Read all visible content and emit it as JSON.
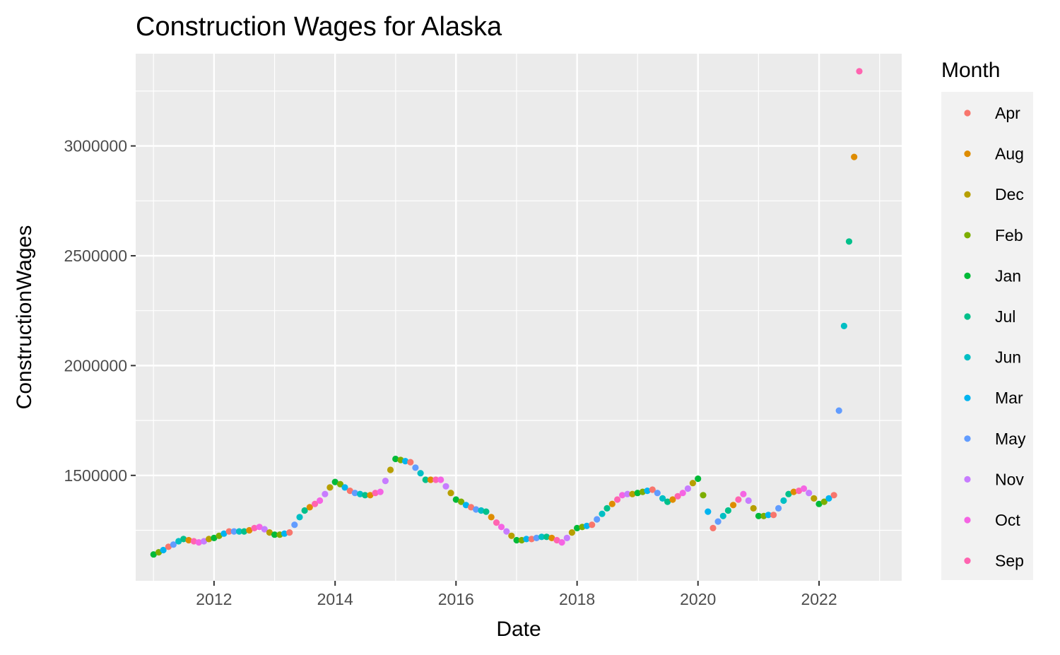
{
  "chart_data": {
    "type": "scatter",
    "title": "Construction Wages for Alaska",
    "xlabel": "Date",
    "ylabel": "ConstructionWages",
    "xlim": [
      "2010-09-15",
      "2023-05-15"
    ],
    "ylim": [
      1020000,
      3420000
    ],
    "x_ticks": [
      {
        "date": "2012-01-01",
        "label": "2012"
      },
      {
        "date": "2014-01-01",
        "label": "2014"
      },
      {
        "date": "2016-01-01",
        "label": "2016"
      },
      {
        "date": "2018-01-01",
        "label": "2018"
      },
      {
        "date": "2020-01-01",
        "label": "2020"
      },
      {
        "date": "2022-01-01",
        "label": "2022"
      }
    ],
    "y_ticks": [
      {
        "value": 1500000,
        "label": "1500000"
      },
      {
        "value": 2000000,
        "label": "2000000"
      },
      {
        "value": 2500000,
        "label": "2500000"
      },
      {
        "value": 3000000,
        "label": "3000000"
      }
    ],
    "y_minor_ticks": [
      1250000,
      1750000,
      2250000,
      2750000,
      3250000
    ],
    "grid": true,
    "legend": {
      "title": "Month",
      "placement": "right",
      "entries": [
        {
          "label": "Apr",
          "color": "#F8766D"
        },
        {
          "label": "Aug",
          "color": "#DE8C00"
        },
        {
          "label": "Dec",
          "color": "#B79F00"
        },
        {
          "label": "Feb",
          "color": "#7CAE00"
        },
        {
          "label": "Jan",
          "color": "#00BA38"
        },
        {
          "label": "Jul",
          "color": "#00C08B"
        },
        {
          "label": "Jun",
          "color": "#00BFC4"
        },
        {
          "label": "Mar",
          "color": "#00B4F0"
        },
        {
          "label": "May",
          "color": "#619CFF"
        },
        {
          "label": "Nov",
          "color": "#C77CFF"
        },
        {
          "label": "Oct",
          "color": "#F564E3"
        },
        {
          "label": "Sep",
          "color": "#FF64B0"
        }
      ]
    },
    "series_month_order": [
      "Jan",
      "Feb",
      "Mar",
      "Apr",
      "May",
      "Jun",
      "Jul",
      "Aug",
      "Sep",
      "Oct",
      "Nov",
      "Dec"
    ],
    "series": [
      {
        "year": 2011,
        "values": [
          1140000,
          1150000,
          1160000,
          1175000,
          1185000,
          1200000,
          1210000,
          1205000,
          1200000,
          1195000,
          1200000,
          1210000
        ]
      },
      {
        "year": 2012,
        "values": [
          1215000,
          1225000,
          1235000,
          1245000,
          1245000,
          1245000,
          1245000,
          1250000,
          1260000,
          1265000,
          1255000,
          1240000
        ]
      },
      {
        "year": 2013,
        "values": [
          1230000,
          1230000,
          1235000,
          1240000,
          1275000,
          1310000,
          1340000,
          1355000,
          1370000,
          1385000,
          1415000,
          1445000
        ]
      },
      {
        "year": 2014,
        "values": [
          1470000,
          1460000,
          1445000,
          1430000,
          1420000,
          1415000,
          1410000,
          1410000,
          1420000,
          1425000,
          1475000,
          1525000
        ]
      },
      {
        "year": 2015,
        "values": [
          1575000,
          1570000,
          1565000,
          1560000,
          1535000,
          1510000,
          1480000,
          1480000,
          1480000,
          1480000,
          1450000,
          1420000
        ]
      },
      {
        "year": 2016,
        "values": [
          1390000,
          1380000,
          1365000,
          1355000,
          1345000,
          1340000,
          1335000,
          1310000,
          1285000,
          1265000,
          1245000,
          1225000
        ]
      },
      {
        "year": 2017,
        "values": [
          1205000,
          1205000,
          1210000,
          1210000,
          1215000,
          1220000,
          1220000,
          1215000,
          1205000,
          1195000,
          1215000,
          1240000
        ]
      },
      {
        "year": 2018,
        "values": [
          1260000,
          1265000,
          1270000,
          1275000,
          1300000,
          1325000,
          1350000,
          1370000,
          1390000,
          1410000,
          1415000,
          1415000
        ]
      },
      {
        "year": 2019,
        "values": [
          1420000,
          1425000,
          1430000,
          1435000,
          1420000,
          1395000,
          1380000,
          1390000,
          1405000,
          1420000,
          1440000,
          1465000
        ]
      },
      {
        "year": 2020,
        "values": [
          1485000,
          1410000,
          1335000,
          1260000,
          1290000,
          1315000,
          1340000,
          1365000,
          1390000,
          1415000,
          1385000,
          1350000
        ]
      },
      {
        "year": 2021,
        "values": [
          1315000,
          1315000,
          1320000,
          1320000,
          1350000,
          1385000,
          1415000,
          1425000,
          1430000,
          1440000,
          1420000,
          1395000
        ]
      },
      {
        "year": 2022,
        "values": [
          1370000,
          1380000,
          1395000,
          1410000,
          1795000,
          2180000,
          2565000,
          2950000,
          3340000,
          null,
          null,
          null
        ]
      }
    ]
  }
}
